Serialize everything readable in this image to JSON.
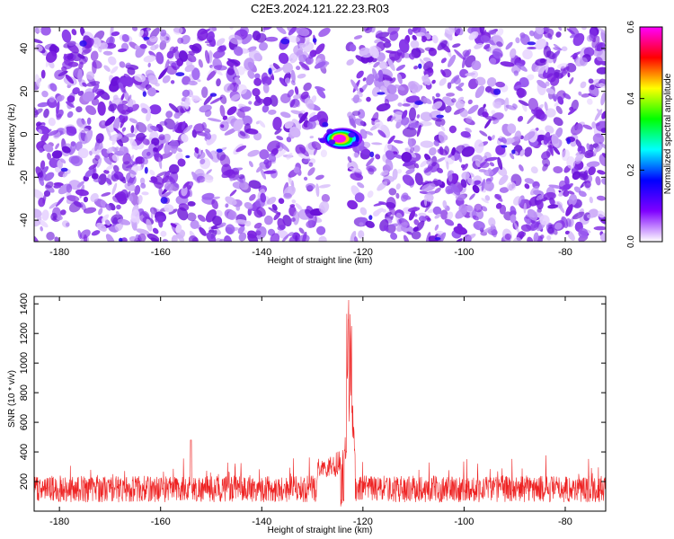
{
  "title": "C2E3.2024.121.22.23.R03",
  "colors": {
    "trace": "#ee2222",
    "frame": "#000000",
    "background": "#ffffff"
  },
  "chart_data": [
    {
      "type": "heatmap",
      "xlabel": "Height of straight line (km)",
      "ylabel": "Frequency (Hz)",
      "xlim": [
        -185,
        -72
      ],
      "ylim": [
        -50,
        50
      ],
      "x_ticks": [
        -180,
        -160,
        -140,
        -120,
        -100,
        -80
      ],
      "y_ticks": [
        -40,
        -20,
        0,
        20,
        40
      ],
      "gap_x_range": [
        -127,
        -123
      ],
      "peak": {
        "x": -124,
        "y": -2,
        "value": 0.6
      },
      "colorbar": {
        "label": "Normalized spectral amplitude",
        "range": [
          0.0,
          0.6
        ],
        "ticks": [
          "0.0",
          "0.2",
          "0.4",
          "0.6"
        ],
        "stops": [
          "#ffffff",
          "#7f00ff",
          "#0000ff",
          "#00ffff",
          "#00ff00",
          "#ffff00",
          "#ff0000",
          "#ff00ff"
        ]
      },
      "grid": false
    },
    {
      "type": "line",
      "xlabel": "Height of straight line (km)",
      "ylabel": "SNR (10 * v/v)",
      "xlim": [
        -185,
        -72
      ],
      "ylim": [
        0,
        1450
      ],
      "x_ticks": [
        -180,
        -160,
        -140,
        -120,
        -100,
        -80
      ],
      "y_ticks": [
        200,
        400,
        600,
        800,
        1000,
        1200,
        1400
      ],
      "noise_band": [
        0,
        450
      ],
      "peak": {
        "x": -122.5,
        "y": 1440
      },
      "grid": false
    }
  ]
}
